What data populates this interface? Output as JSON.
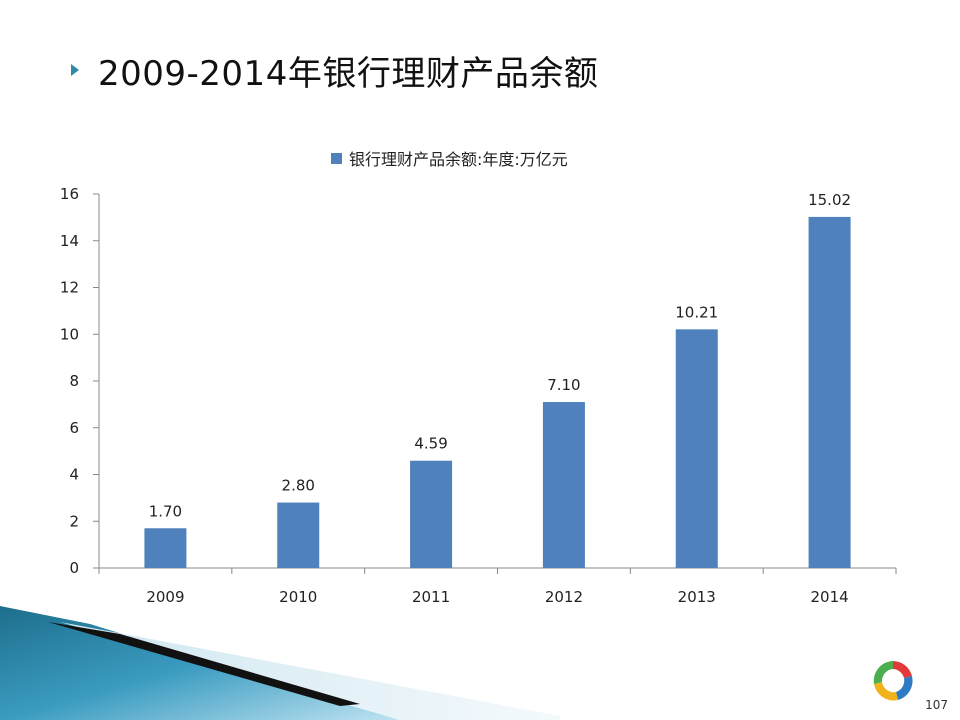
{
  "slide": {
    "title": "2009-2014年银行理财产品余额",
    "page_number": "107"
  },
  "legend": {
    "label": "银行理财产品余额:年度:万亿元"
  },
  "icons": {
    "bullet": "triangle-bullet-icon",
    "logo": "ring-logo-icon"
  },
  "colors": {
    "bar": "#4F81BD",
    "bullet": "#2E8BA8",
    "axis": "#888888"
  },
  "chart_data": {
    "type": "bar",
    "categories": [
      "2009",
      "2010",
      "2011",
      "2012",
      "2013",
      "2014"
    ],
    "series": [
      {
        "name": "银行理财产品余额:年度:万亿元",
        "values": [
          1.7,
          2.8,
          4.59,
          7.1,
          10.21,
          15.02
        ],
        "labels": [
          "1.70",
          "2.80",
          "4.59",
          "7.10",
          "10.21",
          "15.02"
        ]
      }
    ],
    "ylim": [
      0,
      16
    ],
    "yticks": [
      "0",
      "2",
      "4",
      "6",
      "8",
      "10",
      "12",
      "14",
      "16"
    ],
    "xlabel": "",
    "ylabel": "",
    "grid": false,
    "legend_position": "top-center"
  }
}
